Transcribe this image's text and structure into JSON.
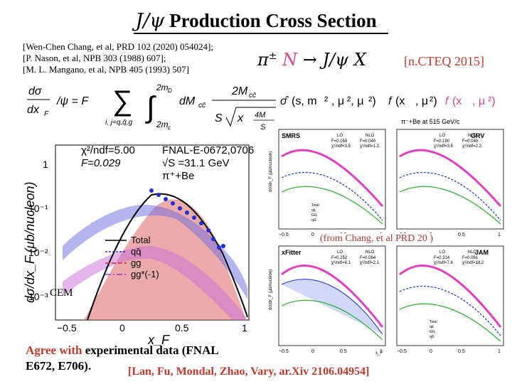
{
  "title": {
    "jpsi": "J/ψ",
    "text": "Production Cross Section"
  },
  "refs": [
    "[Wen-Chen Chang, et al, PRD 102 (2020) 054024];",
    "[P. Nason, et al, NPB 303 (1988) 607];",
    "[M. L. Mangano, et al, NPB 405 (1993) 507]"
  ],
  "process": {
    "pi": "π",
    "sup": "±",
    "n": "N",
    "arrow": "→ J/ψ  X"
  },
  "cteq": "[n.CTEQ 2015]",
  "formula": {
    "lhs_num": "dσ",
    "lhs_den": "dx",
    "lhs_sub": "F",
    "eq": "/ψ = F",
    "sum_sub": "i, j=q,q̄,g",
    "int_upper": "2m",
    "int_upper_sub": "D",
    "int_lower": "2m",
    "int_lower_sub": "c",
    "dm": "dM",
    "dm_sub": "cc̄",
    "frac_num": "2M",
    "frac_num_sub": "cc̄",
    "sqrt_body": "x",
    "sqrt_frac_num": "4M",
    "sqrt_frac_den": "S",
    "S": "S",
    "sigma_hat": "σ̂",
    "sigma_args": "(s, m",
    "f_pi": "f",
    "f_args": "(x",
    "f_N": "f",
    "f_N_args": "(x"
  },
  "from_label": "(from Chang, et al PRD 20 )",
  "cem_label": "CEM",
  "agree": {
    "red": "Agree with",
    "rest": " experimental data (FNAL",
    "line2": "E672, E706)."
  },
  "cite": "[Lan, Fu, Mondal, Zhao, Vary, ar.Xiv 2106.04954]",
  "main_plot": {
    "stats_line1": "χ²/ndf=5.00",
    "stats_line2": "F=0.029",
    "experiment": "FNAL-E-0672,0706",
    "energy": "√S =31.1 GeV",
    "beam": "π⁺+Be",
    "ylabel": "dσ/dx_F (μb/nucleon)",
    "xlabel": "x_F",
    "xticks": [
      "−0.5",
      "0",
      "0.5",
      "1"
    ],
    "yticks": [
      "1",
      "10⁻¹",
      "10⁻²",
      "10⁻³"
    ],
    "legend": [
      "Total",
      "qq̄",
      "gg",
      "gg*(-1)"
    ]
  },
  "panels": {
    "header": "π⁻+Be at 515 GeV/c",
    "names": [
      "SMRS",
      "GRV",
      "xFitter",
      "JAM"
    ],
    "lo": "LO",
    "nlo": "NLO",
    "f_values": [
      [
        "F=0.169",
        "F=0.040"
      ],
      [
        "F=0.190",
        "F=0.040"
      ],
      [
        "F=0.252",
        "F=0.064"
      ],
      [
        "F=0.314",
        "F=0.061"
      ]
    ],
    "chi_values": [
      [
        "χ²/ndf=3.5",
        "χ²/ndf=1.2"
      ],
      [
        "χ²/ndf=3.5",
        "χ²/ndf=2.2"
      ],
      [
        "χ²/ndf=6.1",
        "χ²/ndf=2.1"
      ],
      [
        "χ²/ndf=7.6",
        "χ²/ndf=18.2"
      ]
    ],
    "legend": [
      "Total",
      "qq̄",
      "GG",
      "qG"
    ],
    "xticks": [
      "−0.5",
      "0",
      "0.5",
      "1"
    ],
    "xlabel": "x_F",
    "ylabel": "dσ/dx_F (μb/nucleon)"
  },
  "colors": {
    "accent_red": "#c0392b",
    "magenta": "#d9488e",
    "data_blue": "#1f2fd6"
  }
}
